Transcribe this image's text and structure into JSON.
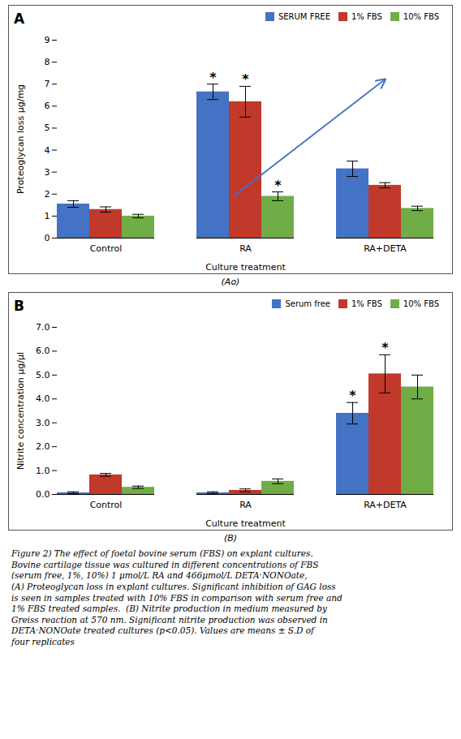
{
  "chart_data": [
    {
      "type": "bar",
      "title": "A",
      "categories": [
        "Control",
        "RA",
        "RA+DETA"
      ],
      "series": [
        {
          "name": "SERUM FREE",
          "color": "#4472C4",
          "values": [
            1.55,
            6.65,
            3.15
          ],
          "errors": [
            0.15,
            0.35,
            0.35
          ]
        },
        {
          "name": "1% FBS",
          "color": "#C0392B",
          "values": [
            1.3,
            6.2,
            2.4
          ],
          "errors": [
            0.12,
            0.7,
            0.12
          ]
        },
        {
          "name": "10% FBS",
          "color": "#70AD47",
          "values": [
            1.0,
            1.9,
            1.35
          ],
          "errors": [
            0.08,
            0.2,
            0.1
          ]
        }
      ],
      "xlabel": "Culture treatment",
      "ylabel": "Proteoglycan loss μg/mg",
      "ylim": [
        0,
        9
      ],
      "yticks": [
        0,
        1,
        2,
        3,
        4,
        5,
        6,
        7,
        8,
        9
      ],
      "grid": false,
      "legend": "upper right",
      "annotations": [
        {
          "text": "*",
          "category": "RA",
          "series": "SERUM FREE"
        },
        {
          "text": "*",
          "category": "RA",
          "series": "1% FBS"
        },
        {
          "text": "*",
          "category": "RA",
          "series": "10% FBS"
        },
        {
          "type": "arrow",
          "color": "#4472C4"
        }
      ],
      "caption": "(Ao)"
    },
    {
      "type": "bar",
      "title": "B",
      "categories": [
        "Control",
        "RA",
        "RA+DETA"
      ],
      "series": [
        {
          "name": "Serum free",
          "color": "#4472C4",
          "values": [
            0.07,
            0.07,
            3.4
          ],
          "errors": [
            0.04,
            0.04,
            0.45
          ]
        },
        {
          "name": "1% FBS",
          "color": "#C0392B",
          "values": [
            0.82,
            0.17,
            5.05
          ],
          "errors": [
            0.06,
            0.06,
            0.8
          ]
        },
        {
          "name": "10% FBS",
          "color": "#70AD47",
          "values": [
            0.3,
            0.55,
            4.5
          ],
          "errors": [
            0.05,
            0.1,
            0.5
          ]
        }
      ],
      "xlabel": "Culture treatment",
      "ylabel": "Nitrite concentration μg/μl",
      "ylim": [
        0,
        7
      ],
      "yticks": [
        0,
        1,
        2,
        3,
        4,
        5,
        6,
        7
      ],
      "grid": false,
      "legend": "upper right",
      "annotations": [
        {
          "text": "*",
          "category": "RA+DETA",
          "series": "Serum free"
        },
        {
          "text": "*",
          "category": "RA+DETA",
          "series": "1% FBS"
        }
      ],
      "caption": "(B)"
    }
  ],
  "caption": "Figure 2) The effect of foetal bovine serum (FBS) on explant cultures.\nBovine cartilage tissue was cultured in different concentrations of FBS\n(serum free, 1%, 10%) 1 μmol/L RA and 466μmol/L DETA·NONOate,\n(A) Proteoglycan loss in explant cultures. Significant inhibition of GAG loss\nis seen in samples treated with 10% FBS in comparison with serum free and\n1% FBS treated samples.  (B) Nitrite production in medium measured by\nGreiss reaction at 570 nm. Significant nitrite production was observed in\nDETA·NONOate treated cultures (p<0.05). Values are means ± S.D of\nfour replicates"
}
